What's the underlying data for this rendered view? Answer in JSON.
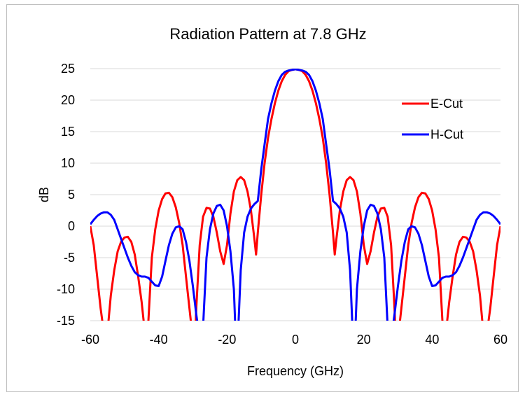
{
  "chart_data": {
    "type": "line",
    "title": "Radiation Pattern at 7.8 GHz",
    "xlabel": "Frequency (GHz)",
    "ylabel": "dB",
    "xlim": [
      -60,
      60
    ],
    "ylim": [
      -15,
      25
    ],
    "xticks": [
      -60,
      -40,
      -20,
      0,
      20,
      40,
      60
    ],
    "yticks": [
      -15,
      -10,
      -5,
      0,
      5,
      10,
      15,
      20,
      25
    ],
    "xtick_labels": [
      "-60",
      "-40",
      "-20",
      "0",
      "20",
      "40",
      "60"
    ],
    "ytick_labels": [
      "-15",
      "-10",
      "-5",
      "0",
      "5",
      "10",
      "15",
      "20",
      "25"
    ],
    "grid": true,
    "legend_position": "top-right",
    "series": [
      {
        "name": "E-Cut",
        "color": "#ff0000",
        "x": [
          -60,
          -59,
          -58,
          -57,
          -56,
          -55.5,
          -55,
          -54,
          -53,
          -52,
          -51,
          -50,
          -49,
          -48,
          -47,
          -46,
          -45,
          -44,
          -43.5,
          -43,
          -42,
          -41,
          -40,
          -39,
          -38,
          -37,
          -36,
          -35,
          -34,
          -33,
          -32,
          -31,
          -30,
          -29.5,
          -29,
          -28,
          -27,
          -26,
          -25,
          -24,
          -23,
          -22,
          -21,
          -20,
          -19,
          -18,
          -17,
          -16,
          -15,
          -14,
          -13,
          -12,
          -11.5,
          -11,
          -10,
          -9,
          -8,
          -7,
          -6,
          -5,
          -4,
          -3,
          -2,
          -1,
          0,
          1,
          2,
          3,
          4,
          5,
          6,
          7,
          8,
          9,
          10,
          11,
          11.5,
          12,
          13,
          14,
          15,
          16,
          17,
          18,
          19,
          20,
          21,
          22,
          23,
          24,
          25,
          26,
          27,
          28,
          29,
          29.5,
          30,
          31,
          32,
          33,
          34,
          35,
          36,
          37,
          38,
          39,
          40,
          41,
          42,
          43,
          43.5,
          44,
          45,
          46,
          47,
          48,
          49,
          50,
          51,
          52,
          53,
          54,
          55,
          55.5,
          56,
          57,
          58,
          59,
          60
        ],
        "y": [
          0,
          -3,
          -8,
          -13,
          -17,
          -20,
          -17,
          -11,
          -7,
          -4,
          -2.5,
          -1.8,
          -1.7,
          -2.5,
          -4.5,
          -8,
          -12,
          -17,
          -20,
          -15,
          -5,
          -0.5,
          2.5,
          4.3,
          5.2,
          5.3,
          4.6,
          3,
          0.5,
          -3,
          -8,
          -13,
          -18,
          -20,
          -13,
          -3,
          1.5,
          2.9,
          2.8,
          1.5,
          -1,
          -4,
          -6,
          -3,
          2,
          5.5,
          7.3,
          7.8,
          7.3,
          5.5,
          2.5,
          -2,
          -4.5,
          -1,
          5,
          10,
          14,
          17,
          19.5,
          21.5,
          23,
          24,
          24.6,
          24.8,
          24.9,
          24.8,
          24.6,
          24,
          23,
          21.5,
          19.5,
          17,
          14,
          10,
          5,
          -1,
          -4.5,
          -2,
          2.5,
          5.5,
          7.3,
          7.8,
          7.3,
          5.5,
          2,
          -3,
          -6,
          -4,
          -1,
          1.5,
          2.8,
          2.9,
          1.5,
          -3,
          -13,
          -20,
          -18,
          -13,
          -8,
          -3,
          0.5,
          3,
          4.6,
          5.3,
          5.2,
          4.3,
          2.5,
          -0.5,
          -5,
          -15,
          -20,
          -17,
          -12,
          -8,
          -4.5,
          -2.5,
          -1.7,
          -1.8,
          -2.5,
          -4,
          -7,
          -11,
          -17,
          -20,
          -17,
          -13,
          -8,
          -3,
          0
        ]
      },
      {
        "name": "H-Cut",
        "color": "#0000ff",
        "x": [
          -60,
          -59,
          -58,
          -57,
          -56,
          -55,
          -54,
          -53,
          -52,
          -51,
          -50,
          -49,
          -48,
          -47,
          -46,
          -45,
          -44,
          -43,
          -42,
          -41,
          -40,
          -39,
          -38,
          -37,
          -36,
          -35,
          -34,
          -33,
          -32,
          -31,
          -30,
          -29,
          -28,
          -27.5,
          -27,
          -26,
          -25,
          -24,
          -23,
          -22,
          -21,
          -20,
          -19,
          -18,
          -17.5,
          -17,
          -16,
          -15,
          -14,
          -13,
          -12,
          -11,
          -10,
          -9,
          -8,
          -7,
          -6,
          -5,
          -4,
          -3,
          -2,
          -1,
          0,
          1,
          2,
          3,
          4,
          5,
          6,
          7,
          8,
          9,
          10,
          11,
          12,
          13,
          14,
          15,
          16,
          17,
          17.5,
          18,
          19,
          20,
          21,
          22,
          23,
          24,
          25,
          26,
          27,
          27.5,
          28,
          29,
          30,
          31,
          32,
          33,
          34,
          35,
          36,
          37,
          38,
          39,
          40,
          41,
          42,
          43,
          44,
          45,
          46,
          47,
          48,
          49,
          50,
          51,
          52,
          53,
          54,
          55,
          56,
          57,
          58,
          59,
          60
        ],
        "y": [
          0.3,
          1,
          1.6,
          2,
          2.2,
          2.2,
          1.8,
          1,
          -0.5,
          -2,
          -3.5,
          -5,
          -6.3,
          -7.3,
          -7.8,
          -8,
          -8,
          -8.2,
          -8.8,
          -9.4,
          -9.5,
          -8,
          -5.5,
          -3,
          -1.2,
          -0.2,
          0,
          -0.5,
          -2.5,
          -5.5,
          -9.5,
          -14,
          -18,
          -20,
          -16,
          -5,
          -0.5,
          2,
          3.2,
          3.4,
          2.5,
          0,
          -4,
          -10,
          -17,
          -20,
          -7,
          -1,
          1.5,
          2.8,
          3.5,
          4,
          9,
          13,
          17,
          19.5,
          21.5,
          23,
          24,
          24.5,
          24.7,
          24.8,
          24.9,
          24.8,
          24.7,
          24.5,
          24,
          23,
          21.5,
          19.5,
          17,
          13,
          9,
          4,
          3.5,
          2.8,
          1.5,
          -1,
          -7,
          -20,
          -17,
          -10,
          -4,
          0,
          2.5,
          3.4,
          3.2,
          2,
          -0.5,
          -5,
          -16,
          -20,
          -18,
          -14,
          -9.5,
          -5.5,
          -2.5,
          -0.5,
          0,
          -0.2,
          -1.2,
          -3,
          -5.5,
          -8,
          -9.5,
          -9.4,
          -8.8,
          -8.2,
          -8,
          -8,
          -7.8,
          -7.3,
          -6.3,
          -5,
          -3.5,
          -2,
          -0.5,
          1,
          1.8,
          2.2,
          2.2,
          2,
          1.6,
          1,
          0.3
        ]
      }
    ]
  }
}
